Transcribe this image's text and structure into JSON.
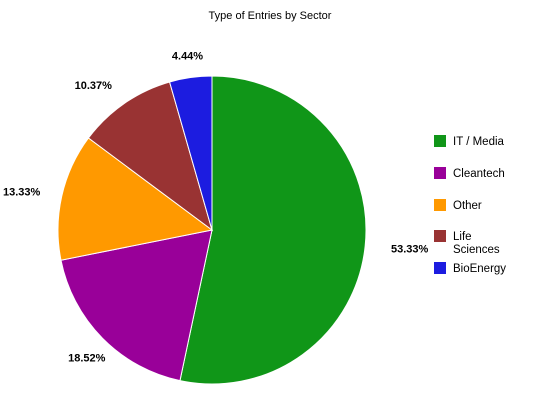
{
  "chart_data": {
    "type": "pie",
    "title": "Type of Entries by Sector",
    "legend_position": "right",
    "slices": [
      {
        "label": "IT / Media",
        "value": 53.33,
        "value_label": "53.33%",
        "color": "#109618"
      },
      {
        "label": "Cleantech",
        "value": 18.52,
        "value_label": "18.52%",
        "color": "#990099"
      },
      {
        "label": "Other",
        "value": 13.33,
        "value_label": "13.33%",
        "color": "#ff9900"
      },
      {
        "label": "Life Sciences",
        "value": 10.37,
        "value_label": "10.37%",
        "color": "#993333"
      },
      {
        "label": "BioEnergy",
        "value": 4.44,
        "value_label": "4.44%",
        "color": "#1c1ce0"
      }
    ]
  }
}
